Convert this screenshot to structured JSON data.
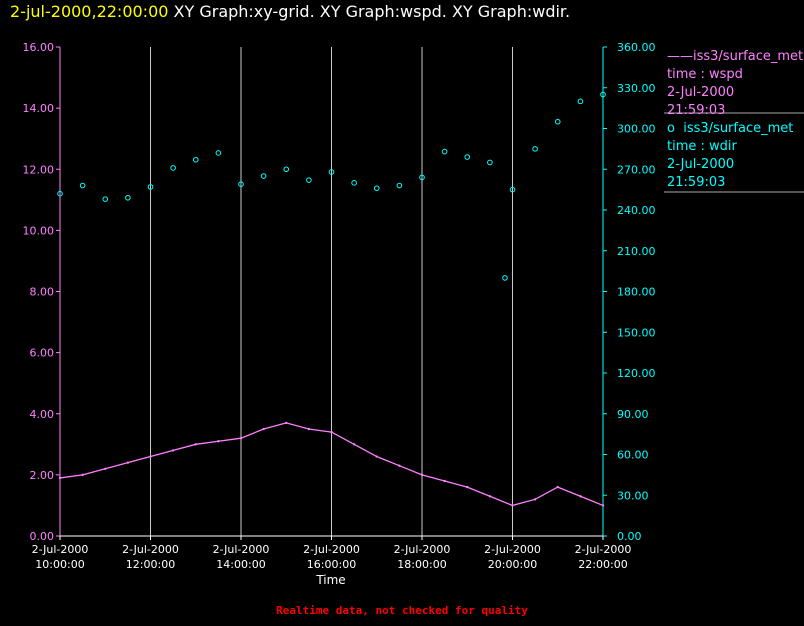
{
  "header": {
    "timestamp": "2-jul-2000,22:00:00",
    "graphs": "XY Graph:xy-grid.  XY Graph:wspd.  XY Graph:wdir."
  },
  "footer": {
    "note": "Realtime data, not checked for quality"
  },
  "colors": {
    "wspd": "#ff80ff",
    "wdir": "#00ffff",
    "grid": "#ffffff",
    "title_time": "#ffff00",
    "footer": "#ff0000"
  },
  "legend": {
    "wspd": {
      "marker": "——",
      "source": "iss3/surface_met",
      "field": "time : wspd",
      "date": "2-Jul-2000",
      "time": "21:59:03"
    },
    "wdir": {
      "marker": "o",
      "source": "iss3/surface_met",
      "field": "time : wdir",
      "date": "2-Jul-2000",
      "time": "21:59:03"
    }
  },
  "chart_data": {
    "type": "line",
    "xlabel": "Time",
    "xlim": [
      "2000-07-02T10:00:00",
      "2000-07-02T22:00:00"
    ],
    "x_ticks": [
      {
        "date": "2-Jul-2000",
        "time": "10:00:00"
      },
      {
        "date": "2-Jul-2000",
        "time": "12:00:00"
      },
      {
        "date": "2-Jul-2000",
        "time": "14:00:00"
      },
      {
        "date": "2-Jul-2000",
        "time": "16:00:00"
      },
      {
        "date": "2-Jul-2000",
        "time": "18:00:00"
      },
      {
        "date": "2-Jul-2000",
        "time": "20:00:00"
      },
      {
        "date": "2-Jul-2000",
        "time": "22:00:00"
      }
    ],
    "y_left": {
      "ylim": [
        0,
        16
      ],
      "ticks": [
        "0.00",
        "2.00",
        "4.00",
        "6.00",
        "8.00",
        "10.00",
        "12.00",
        "14.00",
        "16.00"
      ]
    },
    "y_right": {
      "ylim": [
        0,
        360
      ],
      "ticks": [
        "0.00",
        "30.00",
        "60.00",
        "90.00",
        "120.00",
        "150.00",
        "180.00",
        "210.00",
        "240.00",
        "270.00",
        "300.00",
        "330.00",
        "360.00"
      ]
    },
    "grid": "vertical lines at each x tick",
    "series": [
      {
        "name": "iss3/surface_met time : wspd",
        "axis": "left",
        "style": "line",
        "x": [
          "10:00",
          "10:30",
          "11:00",
          "11:30",
          "12:00",
          "12:30",
          "13:00",
          "13:30",
          "14:00",
          "14:30",
          "15:00",
          "15:30",
          "16:00",
          "16:30",
          "17:00",
          "17:30",
          "18:00",
          "18:30",
          "19:00",
          "19:30",
          "20:00",
          "20:30",
          "21:00",
          "21:30",
          "22:00"
        ],
        "y": [
          1.9,
          2.0,
          2.2,
          2.4,
          2.6,
          2.8,
          3.0,
          3.1,
          3.2,
          3.5,
          3.7,
          3.5,
          3.4,
          3.0,
          2.6,
          2.3,
          2.0,
          1.8,
          1.6,
          1.3,
          1.0,
          1.2,
          1.6,
          1.3,
          1.0
        ]
      },
      {
        "name": "iss3/surface_met time : wdir",
        "axis": "right",
        "style": "markers",
        "x": [
          "10:00",
          "10:30",
          "11:00",
          "11:30",
          "12:00",
          "12:30",
          "13:00",
          "13:30",
          "14:00",
          "14:30",
          "15:00",
          "15:30",
          "16:00",
          "16:30",
          "17:00",
          "17:30",
          "18:00",
          "18:30",
          "19:00",
          "19:30",
          "19:50",
          "20:00",
          "20:30",
          "21:00",
          "21:30",
          "22:00"
        ],
        "y": [
          252,
          258,
          248,
          249,
          257,
          271,
          277,
          282,
          259,
          265,
          270,
          262,
          268,
          260,
          256,
          258,
          264,
          283,
          279,
          275,
          190,
          255,
          285,
          305,
          320,
          325
        ]
      }
    ]
  }
}
